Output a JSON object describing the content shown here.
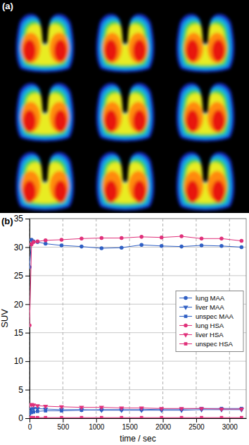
{
  "image_panel": {
    "label": "(a)"
  },
  "chart_data": {
    "type": "line",
    "title": "(b)",
    "x_label": "time / sec",
    "y_label": "SUV",
    "x": [
      0,
      30,
      60,
      120,
      240,
      480,
      780,
      1080,
      1380,
      1680,
      1980,
      2280,
      2580,
      2880,
      3180
    ],
    "series": [
      {
        "name": "lung MAA",
        "color": "#2f5fc4",
        "marker": "circle",
        "values": [
          26.5,
          31.3,
          31.0,
          30.9,
          30.6,
          30.3,
          30.1,
          29.8,
          29.9,
          30.4,
          30.2,
          30.1,
          30.3,
          30.2,
          30.0
        ]
      },
      {
        "name": "liver MAA",
        "color": "#2f5fc4",
        "marker": "triangle-down",
        "values": [
          1.2,
          1.6,
          1.7,
          1.7,
          1.6,
          1.5,
          1.5,
          1.4,
          1.4,
          1.4,
          1.4,
          1.4,
          1.5,
          1.5,
          1.5
        ]
      },
      {
        "name": "unspec MAA",
        "color": "#2f5fc4",
        "marker": "square",
        "values": [
          0.8,
          1.0,
          1.1,
          1.2,
          1.3,
          1.3,
          1.4,
          1.5,
          1.5,
          1.5,
          1.6,
          1.6,
          1.7,
          1.7,
          1.7
        ]
      },
      {
        "name": "lung HSA",
        "color": "#e0307a",
        "marker": "circle",
        "values": [
          16.3,
          30.5,
          30.9,
          31.0,
          31.2,
          31.3,
          31.5,
          31.6,
          31.6,
          31.8,
          31.7,
          31.9,
          31.5,
          31.5,
          31.1
        ]
      },
      {
        "name": "liver HSA",
        "color": "#e0307a",
        "marker": "triangle-down",
        "values": [
          2.3,
          2.4,
          2.3,
          2.2,
          2.1,
          2.0,
          1.9,
          1.9,
          1.8,
          1.8,
          1.7,
          1.7,
          1.7,
          1.6,
          1.6
        ]
      },
      {
        "name": "unspec HSA",
        "color": "#e0307a",
        "marker": "square",
        "values": [
          0.1,
          0.1,
          0.1,
          0.1,
          0.1,
          0.1,
          0.1,
          0.1,
          0.1,
          0.1,
          0.1,
          0.1,
          0.1,
          0.1,
          0.1
        ]
      }
    ],
    "xlim": [
      0,
      3250
    ],
    "xticks": [
      0,
      500,
      1000,
      1500,
      2000,
      2500,
      3000
    ],
    "ylim": [
      0,
      35
    ],
    "yticks": [
      0,
      5,
      10,
      15,
      20,
      25,
      30,
      35
    ],
    "grid": true,
    "legend": "right"
  }
}
